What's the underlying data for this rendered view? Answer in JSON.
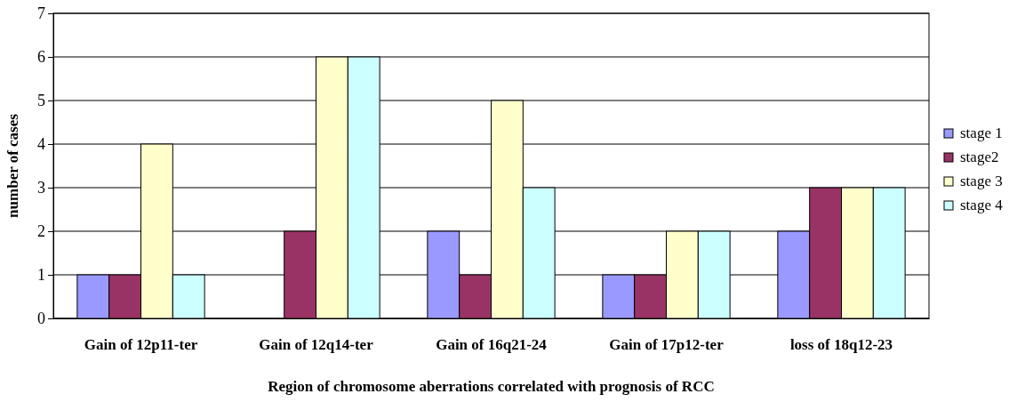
{
  "chart_data": {
    "type": "bar",
    "xlabel": "Region of chromosome aberrations correlated with prognosis of RCC",
    "ylabel": "number of cases",
    "categories": [
      "Gain of 12p11-ter",
      "Gain of 12q14-ter",
      "Gain of 16q21-24",
      "Gain of 17p12-ter",
      "loss of 18q12-23"
    ],
    "series": [
      {
        "name": "stage 1",
        "color": "#9999ff",
        "values": [
          1,
          0,
          2,
          1,
          2
        ]
      },
      {
        "name": "stage2",
        "color": "#993366",
        "values": [
          1,
          2,
          1,
          1,
          3
        ]
      },
      {
        "name": "stage 3",
        "color": "#ffffcc",
        "values": [
          4,
          6,
          5,
          2,
          3
        ]
      },
      {
        "name": "stage 4",
        "color": "#ccffff",
        "values": [
          1,
          6,
          3,
          2,
          3
        ]
      }
    ],
    "ylim": [
      0,
      7
    ],
    "yticks": [
      0,
      1,
      2,
      3,
      4,
      5,
      6,
      7
    ],
    "grid": "y",
    "legend": "right"
  }
}
